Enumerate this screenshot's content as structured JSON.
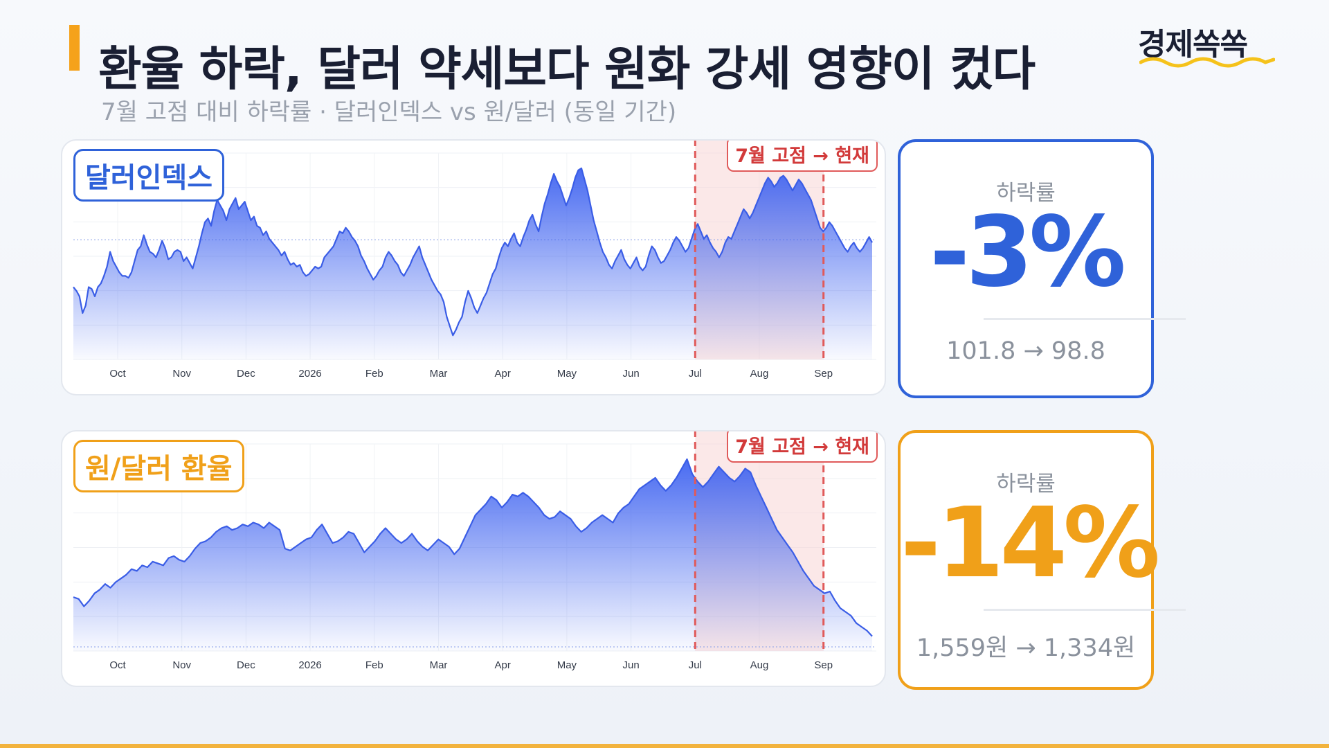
{
  "header": {
    "title": "환율 하락, 달러 약세보다 원화 강세 영향이 컸다",
    "subtitle": "7월 고점 대비 하락률 · 달러인덱스 vs 원/달러 (동일 기간)",
    "brand": "경제쏙쏙"
  },
  "colors": {
    "accent": "#f5a21b",
    "blue": "#2f62d9",
    "orange": "#f0a019",
    "red": "#e05a5a"
  },
  "chart_data": [
    {
      "type": "area",
      "title": "달러인덱스",
      "x_ticks": [
        "Oct",
        "Nov",
        "Dec",
        "2026",
        "Feb",
        "Mar",
        "Apr",
        "May",
        "Jun",
        "Jul",
        "Aug",
        "Sep"
      ],
      "highlight": {
        "label": "7월 고점 → 현재",
        "from": "Jul",
        "to": "Sep"
      },
      "values": [
        0.36,
        0.34,
        0.31,
        0.22,
        0.26,
        0.36,
        0.35,
        0.31,
        0.36,
        0.38,
        0.42,
        0.47,
        0.55,
        0.5,
        0.47,
        0.44,
        0.42,
        0.42,
        0.41,
        0.44,
        0.5,
        0.56,
        0.58,
        0.64,
        0.59,
        0.55,
        0.54,
        0.52,
        0.56,
        0.61,
        0.57,
        0.51,
        0.52,
        0.55,
        0.56,
        0.55,
        0.5,
        0.52,
        0.49,
        0.46,
        0.52,
        0.58,
        0.65,
        0.71,
        0.73,
        0.69,
        0.77,
        0.83,
        0.8,
        0.77,
        0.72,
        0.78,
        0.81,
        0.84,
        0.78,
        0.8,
        0.82,
        0.77,
        0.72,
        0.74,
        0.69,
        0.68,
        0.64,
        0.66,
        0.62,
        0.6,
        0.58,
        0.56,
        0.53,
        0.55,
        0.51,
        0.48,
        0.49,
        0.47,
        0.48,
        0.44,
        0.42,
        0.43,
        0.45,
        0.47,
        0.46,
        0.47,
        0.52,
        0.54,
        0.56,
        0.58,
        0.62,
        0.66,
        0.65,
        0.68,
        0.66,
        0.63,
        0.61,
        0.58,
        0.53,
        0.5,
        0.46,
        0.43,
        0.4,
        0.42,
        0.45,
        0.47,
        0.52,
        0.55,
        0.53,
        0.5,
        0.48,
        0.44,
        0.42,
        0.45,
        0.48,
        0.52,
        0.55,
        0.58,
        0.52,
        0.48,
        0.44,
        0.4,
        0.37,
        0.34,
        0.32,
        0.28,
        0.2,
        0.15,
        0.1,
        0.13,
        0.17,
        0.2,
        0.28,
        0.34,
        0.3,
        0.25,
        0.22,
        0.26,
        0.3,
        0.33,
        0.38,
        0.43,
        0.46,
        0.52,
        0.57,
        0.6,
        0.58,
        0.62,
        0.65,
        0.6,
        0.58,
        0.63,
        0.67,
        0.72,
        0.75,
        0.7,
        0.66,
        0.74,
        0.81,
        0.86,
        0.92,
        0.97,
        0.93,
        0.9,
        0.85,
        0.8,
        0.84,
        0.89,
        0.95,
        0.99,
        1.0,
        0.94,
        0.88,
        0.8,
        0.72,
        0.66,
        0.6,
        0.55,
        0.52,
        0.48,
        0.46,
        0.5,
        0.53,
        0.56,
        0.51,
        0.48,
        0.46,
        0.49,
        0.52,
        0.47,
        0.45,
        0.47,
        0.53,
        0.58,
        0.56,
        0.52,
        0.49,
        0.5,
        0.53,
        0.56,
        0.6,
        0.63,
        0.61,
        0.58,
        0.55,
        0.57,
        0.62,
        0.67,
        0.7,
        0.66,
        0.62,
        0.64,
        0.6,
        0.57,
        0.55,
        0.52,
        0.55,
        0.6,
        0.63,
        0.62,
        0.66,
        0.7,
        0.74,
        0.78,
        0.76,
        0.73,
        0.76,
        0.8,
        0.84,
        0.88,
        0.92,
        0.95,
        0.93,
        0.9,
        0.92,
        0.95,
        0.96,
        0.94,
        0.91,
        0.88,
        0.91,
        0.94,
        0.92,
        0.89,
        0.86,
        0.83,
        0.78,
        0.73,
        0.68,
        0.66,
        0.68,
        0.71,
        0.69,
        0.66,
        0.63,
        0.6,
        0.57,
        0.55,
        0.58,
        0.6,
        0.57,
        0.55,
        0.57,
        0.6,
        0.63,
        0.6
      ]
    },
    {
      "type": "area",
      "title": "원/달러 환율",
      "x_ticks": [
        "Oct",
        "Nov",
        "Dec",
        "2026",
        "Feb",
        "Mar",
        "Apr",
        "May",
        "Jun",
        "Jul",
        "Aug",
        "Sep"
      ],
      "highlight": {
        "label": "7월 고점 → 현재",
        "from": "Jul",
        "to": "Sep"
      },
      "values": [
        0.26,
        0.25,
        0.21,
        0.24,
        0.28,
        0.3,
        0.33,
        0.31,
        0.34,
        0.36,
        0.38,
        0.41,
        0.4,
        0.43,
        0.42,
        0.45,
        0.44,
        0.43,
        0.47,
        0.48,
        0.46,
        0.45,
        0.48,
        0.52,
        0.55,
        0.56,
        0.58,
        0.61,
        0.63,
        0.64,
        0.62,
        0.63,
        0.65,
        0.64,
        0.66,
        0.65,
        0.63,
        0.66,
        0.64,
        0.62,
        0.52,
        0.51,
        0.53,
        0.55,
        0.57,
        0.58,
        0.62,
        0.65,
        0.6,
        0.55,
        0.56,
        0.58,
        0.61,
        0.6,
        0.55,
        0.5,
        0.53,
        0.56,
        0.6,
        0.63,
        0.6,
        0.57,
        0.55,
        0.57,
        0.6,
        0.56,
        0.53,
        0.51,
        0.54,
        0.57,
        0.55,
        0.53,
        0.49,
        0.52,
        0.58,
        0.64,
        0.7,
        0.73,
        0.76,
        0.8,
        0.78,
        0.74,
        0.77,
        0.81,
        0.8,
        0.82,
        0.8,
        0.77,
        0.74,
        0.7,
        0.68,
        0.69,
        0.72,
        0.7,
        0.68,
        0.64,
        0.61,
        0.63,
        0.66,
        0.68,
        0.7,
        0.68,
        0.66,
        0.71,
        0.74,
        0.76,
        0.8,
        0.84,
        0.86,
        0.88,
        0.9,
        0.86,
        0.83,
        0.86,
        0.9,
        0.95,
        1.0,
        0.92,
        0.88,
        0.85,
        0.88,
        0.92,
        0.96,
        0.93,
        0.9,
        0.88,
        0.91,
        0.95,
        0.93,
        0.86,
        0.8,
        0.74,
        0.68,
        0.62,
        0.58,
        0.54,
        0.5,
        0.45,
        0.4,
        0.36,
        0.32,
        0.3,
        0.28,
        0.29,
        0.24,
        0.2,
        0.18,
        0.16,
        0.12,
        0.1,
        0.08,
        0.05
      ],
      "note": ""
    }
  ],
  "stats": [
    {
      "label": "하락률",
      "value": "-3%",
      "range": "101.8  →  98.8"
    },
    {
      "label": "하락률",
      "value": "-14%",
      "range": "1,559원  →  1,334원"
    }
  ]
}
